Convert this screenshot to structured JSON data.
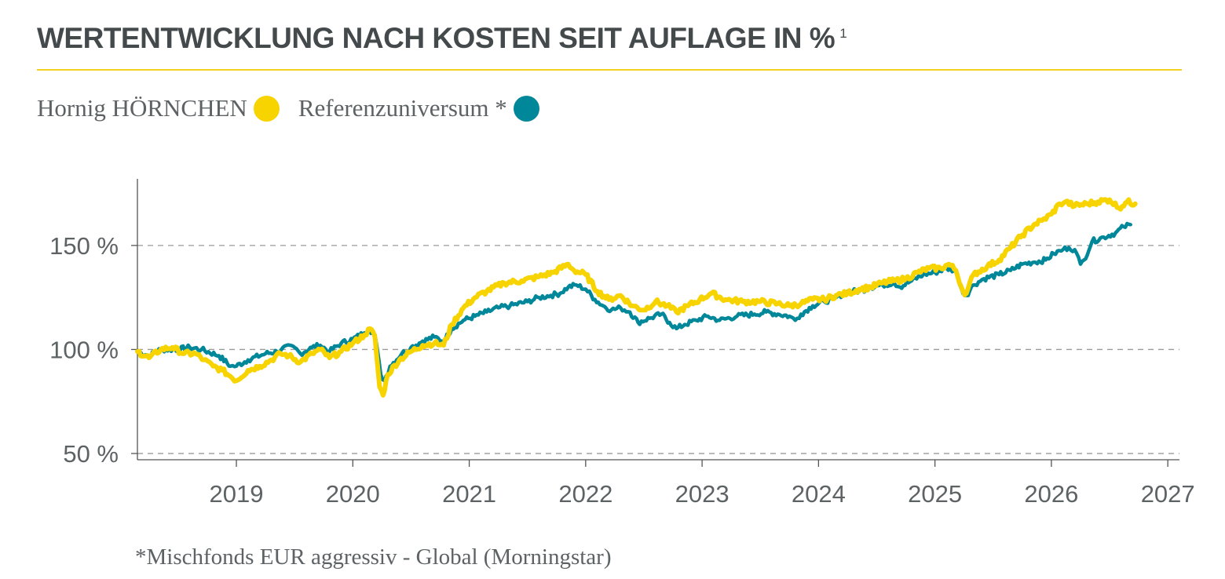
{
  "header": {
    "title": "WERTENTWICKLUNG NACH KOSTEN SEIT AUFLAGE IN %",
    "title_superscript": "1"
  },
  "legend": [
    {
      "label": "Hornig HÖRNCHEN",
      "color": "#f7d400"
    },
    {
      "label": "Referenzuniversum *",
      "color": "#00879a"
    }
  ],
  "footnote": "*Mischfonds EUR aggressiv - Global (Morningstar)",
  "colors": {
    "accent_rule": "#f2d21f",
    "grid": "#9a9a9a",
    "axis": "#555555"
  },
  "chart_data": {
    "type": "line",
    "xlim": [
      2018.15,
      2027.1
    ],
    "ylim": [
      47,
      182
    ],
    "x_ticks": [
      {
        "value": 2019,
        "label": "2019"
      },
      {
        "value": 2020,
        "label": "2020"
      },
      {
        "value": 2021,
        "label": "2021"
      },
      {
        "value": 2022,
        "label": "2022"
      },
      {
        "value": 2023,
        "label": "2023"
      },
      {
        "value": 2024,
        "label": "2024"
      },
      {
        "value": 2025,
        "label": "2025"
      },
      {
        "value": 2026,
        "label": "2026"
      },
      {
        "value": 2027,
        "label": "2027"
      }
    ],
    "y_ticks": [
      {
        "value": 50,
        "label": "50 %"
      },
      {
        "value": 100,
        "label": "100 %"
      },
      {
        "value": 150,
        "label": "150 %"
      }
    ],
    "grid": "dashed horizontal",
    "legend_position": "top-left",
    "series": [
      {
        "name": "Referenzuniversum *",
        "color": "#00879a",
        "points": [
          [
            2018.15,
            99
          ],
          [
            2018.25,
            97
          ],
          [
            2018.35,
            100
          ],
          [
            2018.5,
            100
          ],
          [
            2018.6,
            101
          ],
          [
            2018.7,
            100
          ],
          [
            2018.85,
            97
          ],
          [
            2018.95,
            92
          ],
          [
            2019.0,
            92
          ],
          [
            2019.1,
            95
          ],
          [
            2019.25,
            98
          ],
          [
            2019.35,
            99
          ],
          [
            2019.4,
            101
          ],
          [
            2019.5,
            101
          ],
          [
            2019.55,
            98
          ],
          [
            2019.65,
            101
          ],
          [
            2019.72,
            102
          ],
          [
            2019.8,
            99
          ],
          [
            2019.9,
            103
          ],
          [
            2020.0,
            105
          ],
          [
            2020.1,
            108
          ],
          [
            2020.14,
            110
          ],
          [
            2020.19,
            107
          ],
          [
            2020.24,
            88
          ],
          [
            2020.27,
            85
          ],
          [
            2020.32,
            92
          ],
          [
            2020.42,
            98
          ],
          [
            2020.5,
            101
          ],
          [
            2020.6,
            104
          ],
          [
            2020.7,
            106
          ],
          [
            2020.78,
            104
          ],
          [
            2020.85,
            110
          ],
          [
            2020.95,
            114
          ],
          [
            2021.05,
            116
          ],
          [
            2021.15,
            118
          ],
          [
            2021.25,
            120
          ],
          [
            2021.35,
            121
          ],
          [
            2021.5,
            123
          ],
          [
            2021.6,
            125
          ],
          [
            2021.7,
            126
          ],
          [
            2021.78,
            127
          ],
          [
            2021.85,
            130
          ],
          [
            2021.92,
            131
          ],
          [
            2022.0,
            129
          ],
          [
            2022.08,
            124
          ],
          [
            2022.15,
            121
          ],
          [
            2022.22,
            119
          ],
          [
            2022.3,
            120
          ],
          [
            2022.38,
            118
          ],
          [
            2022.45,
            113
          ],
          [
            2022.55,
            115
          ],
          [
            2022.65,
            117
          ],
          [
            2022.72,
            113
          ],
          [
            2022.78,
            110
          ],
          [
            2022.85,
            112
          ],
          [
            2022.95,
            114
          ],
          [
            2023.05,
            116
          ],
          [
            2023.15,
            114
          ],
          [
            2023.3,
            116
          ],
          [
            2023.45,
            117
          ],
          [
            2023.55,
            118
          ],
          [
            2023.65,
            117
          ],
          [
            2023.75,
            116
          ],
          [
            2023.8,
            114
          ],
          [
            2023.85,
            117
          ],
          [
            2023.95,
            121
          ],
          [
            2024.05,
            123
          ],
          [
            2024.15,
            125
          ],
          [
            2024.25,
            128
          ],
          [
            2024.35,
            128
          ],
          [
            2024.45,
            130
          ],
          [
            2024.55,
            131
          ],
          [
            2024.65,
            132
          ],
          [
            2024.7,
            130
          ],
          [
            2024.8,
            133
          ],
          [
            2024.9,
            136
          ],
          [
            2025.0,
            137
          ],
          [
            2025.1,
            139
          ],
          [
            2025.18,
            138
          ],
          [
            2025.24,
            127
          ],
          [
            2025.27,
            126
          ],
          [
            2025.33,
            131
          ],
          [
            2025.42,
            134
          ],
          [
            2025.55,
            136
          ],
          [
            2025.65,
            138
          ],
          [
            2025.75,
            141
          ],
          [
            2025.85,
            142
          ],
          [
            2025.95,
            143
          ],
          [
            2026.02,
            146
          ],
          [
            2026.1,
            148
          ],
          [
            2026.15,
            149
          ],
          [
            2026.2,
            148
          ],
          [
            2026.25,
            141
          ],
          [
            2026.28,
            143
          ],
          [
            2026.35,
            152
          ],
          [
            2026.45,
            154
          ],
          [
            2026.55,
            156
          ],
          [
            2026.62,
            159
          ],
          [
            2026.68,
            160
          ]
        ]
      },
      {
        "name": "Hornig HÖRNCHEN",
        "color": "#f7d400",
        "points": [
          [
            2018.15,
            99
          ],
          [
            2018.25,
            96
          ],
          [
            2018.35,
            100
          ],
          [
            2018.45,
            101
          ],
          [
            2018.55,
            98
          ],
          [
            2018.65,
            98
          ],
          [
            2018.72,
            95
          ],
          [
            2018.8,
            92
          ],
          [
            2018.88,
            90
          ],
          [
            2018.95,
            87
          ],
          [
            2019.0,
            85
          ],
          [
            2019.1,
            90
          ],
          [
            2019.2,
            92
          ],
          [
            2019.3,
            95
          ],
          [
            2019.38,
            98
          ],
          [
            2019.45,
            97
          ],
          [
            2019.55,
            94
          ],
          [
            2019.65,
            98
          ],
          [
            2019.72,
            100
          ],
          [
            2019.8,
            96
          ],
          [
            2019.9,
            99
          ],
          [
            2020.0,
            103
          ],
          [
            2020.1,
            107
          ],
          [
            2020.15,
            110
          ],
          [
            2020.19,
            106
          ],
          [
            2020.23,
            82
          ],
          [
            2020.26,
            78
          ],
          [
            2020.3,
            88
          ],
          [
            2020.4,
            95
          ],
          [
            2020.5,
            99
          ],
          [
            2020.6,
            102
          ],
          [
            2020.7,
            103
          ],
          [
            2020.78,
            102
          ],
          [
            2020.85,
            112
          ],
          [
            2020.95,
            120
          ],
          [
            2021.05,
            125
          ],
          [
            2021.15,
            128
          ],
          [
            2021.3,
            132
          ],
          [
            2021.45,
            133
          ],
          [
            2021.6,
            135
          ],
          [
            2021.72,
            137
          ],
          [
            2021.85,
            141
          ],
          [
            2021.9,
            138
          ],
          [
            2022.0,
            136
          ],
          [
            2022.1,
            128
          ],
          [
            2022.2,
            124
          ],
          [
            2022.3,
            126
          ],
          [
            2022.4,
            121
          ],
          [
            2022.5,
            119
          ],
          [
            2022.6,
            123
          ],
          [
            2022.7,
            121
          ],
          [
            2022.78,
            118
          ],
          [
            2022.88,
            121
          ],
          [
            2022.98,
            124
          ],
          [
            2023.08,
            127
          ],
          [
            2023.2,
            124
          ],
          [
            2023.35,
            123
          ],
          [
            2023.5,
            123
          ],
          [
            2023.65,
            122
          ],
          [
            2023.75,
            121
          ],
          [
            2023.85,
            122
          ],
          [
            2023.95,
            124
          ],
          [
            2024.05,
            124
          ],
          [
            2024.15,
            126
          ],
          [
            2024.25,
            127
          ],
          [
            2024.35,
            129
          ],
          [
            2024.45,
            130
          ],
          [
            2024.55,
            132
          ],
          [
            2024.65,
            133
          ],
          [
            2024.75,
            134
          ],
          [
            2024.85,
            137
          ],
          [
            2024.95,
            139
          ],
          [
            2025.05,
            139
          ],
          [
            2025.12,
            141
          ],
          [
            2025.18,
            138
          ],
          [
            2025.24,
            128
          ],
          [
            2025.27,
            127
          ],
          [
            2025.33,
            136
          ],
          [
            2025.45,
            140
          ],
          [
            2025.55,
            143
          ],
          [
            2025.65,
            149
          ],
          [
            2025.75,
            155
          ],
          [
            2025.85,
            160
          ],
          [
            2025.92,
            162
          ],
          [
            2026.0,
            165
          ],
          [
            2026.07,
            170
          ],
          [
            2026.12,
            171
          ],
          [
            2026.2,
            169
          ],
          [
            2026.3,
            170
          ],
          [
            2026.4,
            171
          ],
          [
            2026.5,
            172
          ],
          [
            2026.58,
            168
          ],
          [
            2026.65,
            171
          ],
          [
            2026.72,
            170
          ]
        ]
      }
    ]
  }
}
